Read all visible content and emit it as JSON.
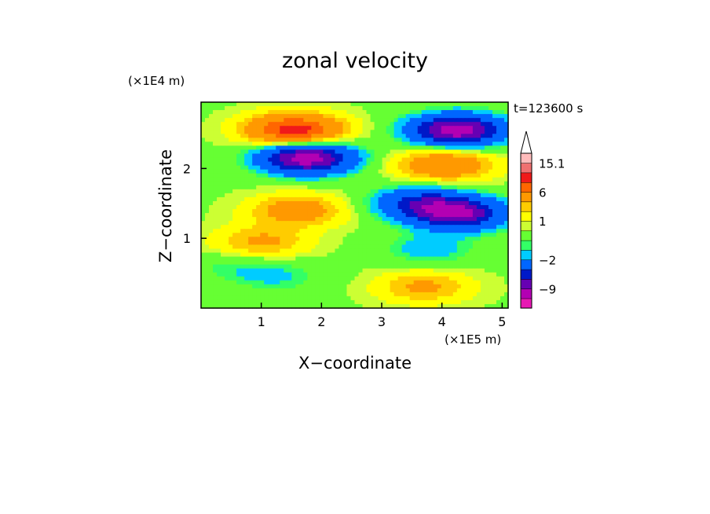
{
  "chart_data": {
    "type": "heatmap",
    "title": "zonal velocity",
    "xlabel": "X−coordinate",
    "ylabel": "Z−coordinate",
    "x_unit": "(×1E5 m)",
    "y_unit": "(×1E4 m)",
    "time_label": "t=123600 s",
    "xlim": [
      0.0,
      5.1
    ],
    "ylim": [
      0.0,
      2.95
    ],
    "x_ticks": [
      "1",
      "2",
      "3",
      "4",
      "5"
    ],
    "y_ticks": [
      "1",
      "2"
    ],
    "colorbar": {
      "levels": [
        -13,
        -11,
        -9,
        -7,
        -5,
        -2,
        -1,
        -0.5,
        0.5,
        1,
        2,
        3,
        6,
        8,
        12.5,
        15.1
      ],
      "tick_labels": [
        "15.1",
        "6",
        "1",
        "−2",
        "−9"
      ],
      "colors": [
        "#e619b3",
        "#b300b3",
        "#6600b3",
        "#0019c8",
        "#0066ff",
        "#00ccff",
        "#33ff66",
        "#66ff33",
        "#ccff33",
        "#ffff00",
        "#ffcc00",
        "#ff9900",
        "#ff6600",
        "#f01a1a",
        "#f07070",
        "#ffbbbb"
      ],
      "extend": "max"
    },
    "anomalies": [
      {
        "x": 1.75,
        "z": 2.15,
        "value": -11
      },
      {
        "x": 1.55,
        "z": 2.55,
        "value": 9
      },
      {
        "x": 4.25,
        "z": 2.55,
        "value": -11
      },
      {
        "x": 4.05,
        "z": 2.05,
        "value": 5
      },
      {
        "x": 1.6,
        "z": 1.4,
        "value": 4
      },
      {
        "x": 4.3,
        "z": 1.35,
        "value": -9
      },
      {
        "x": 3.65,
        "z": 1.5,
        "value": -6
      },
      {
        "x": 3.8,
        "z": 0.85,
        "value": -2
      },
      {
        "x": 0.5,
        "z": 0.6,
        "value": -1
      },
      {
        "x": 1.25,
        "z": 0.45,
        "value": -1.5
      },
      {
        "x": 3.7,
        "z": 0.3,
        "value": 3
      },
      {
        "x": 1.0,
        "z": 0.95,
        "value": 3
      }
    ]
  }
}
